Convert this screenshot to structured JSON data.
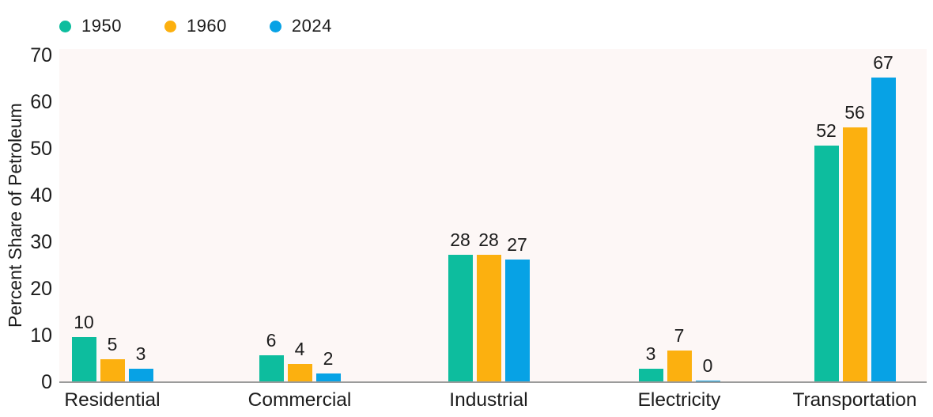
{
  "chart_data": {
    "type": "bar",
    "categories": [
      "Residential",
      "Commercial",
      "Industrial",
      "Electricity",
      "Transportation"
    ],
    "series": [
      {
        "name": "1950",
        "color": "#0DBD9E",
        "values": [
          10,
          6,
          28,
          3,
          52
        ]
      },
      {
        "name": "1960",
        "color": "#FCB00F",
        "values": [
          5,
          4,
          28,
          7,
          56
        ]
      },
      {
        "name": "2024",
        "color": "#07A2E5",
        "values": [
          3,
          2,
          27,
          0,
          67
        ]
      }
    ],
    "title": "",
    "xlabel": "",
    "ylabel": "Percent Share of Petroleum",
    "yticks": [
      0,
      10,
      20,
      30,
      40,
      50,
      60,
      70
    ],
    "ylim": [
      0,
      70
    ],
    "grid": false,
    "legend_position": "top-left",
    "value_labels": true,
    "plot_background": "#FDF7F6",
    "axis_line_color": "#9B9B9B",
    "text_color": "#1C1C1C"
  }
}
